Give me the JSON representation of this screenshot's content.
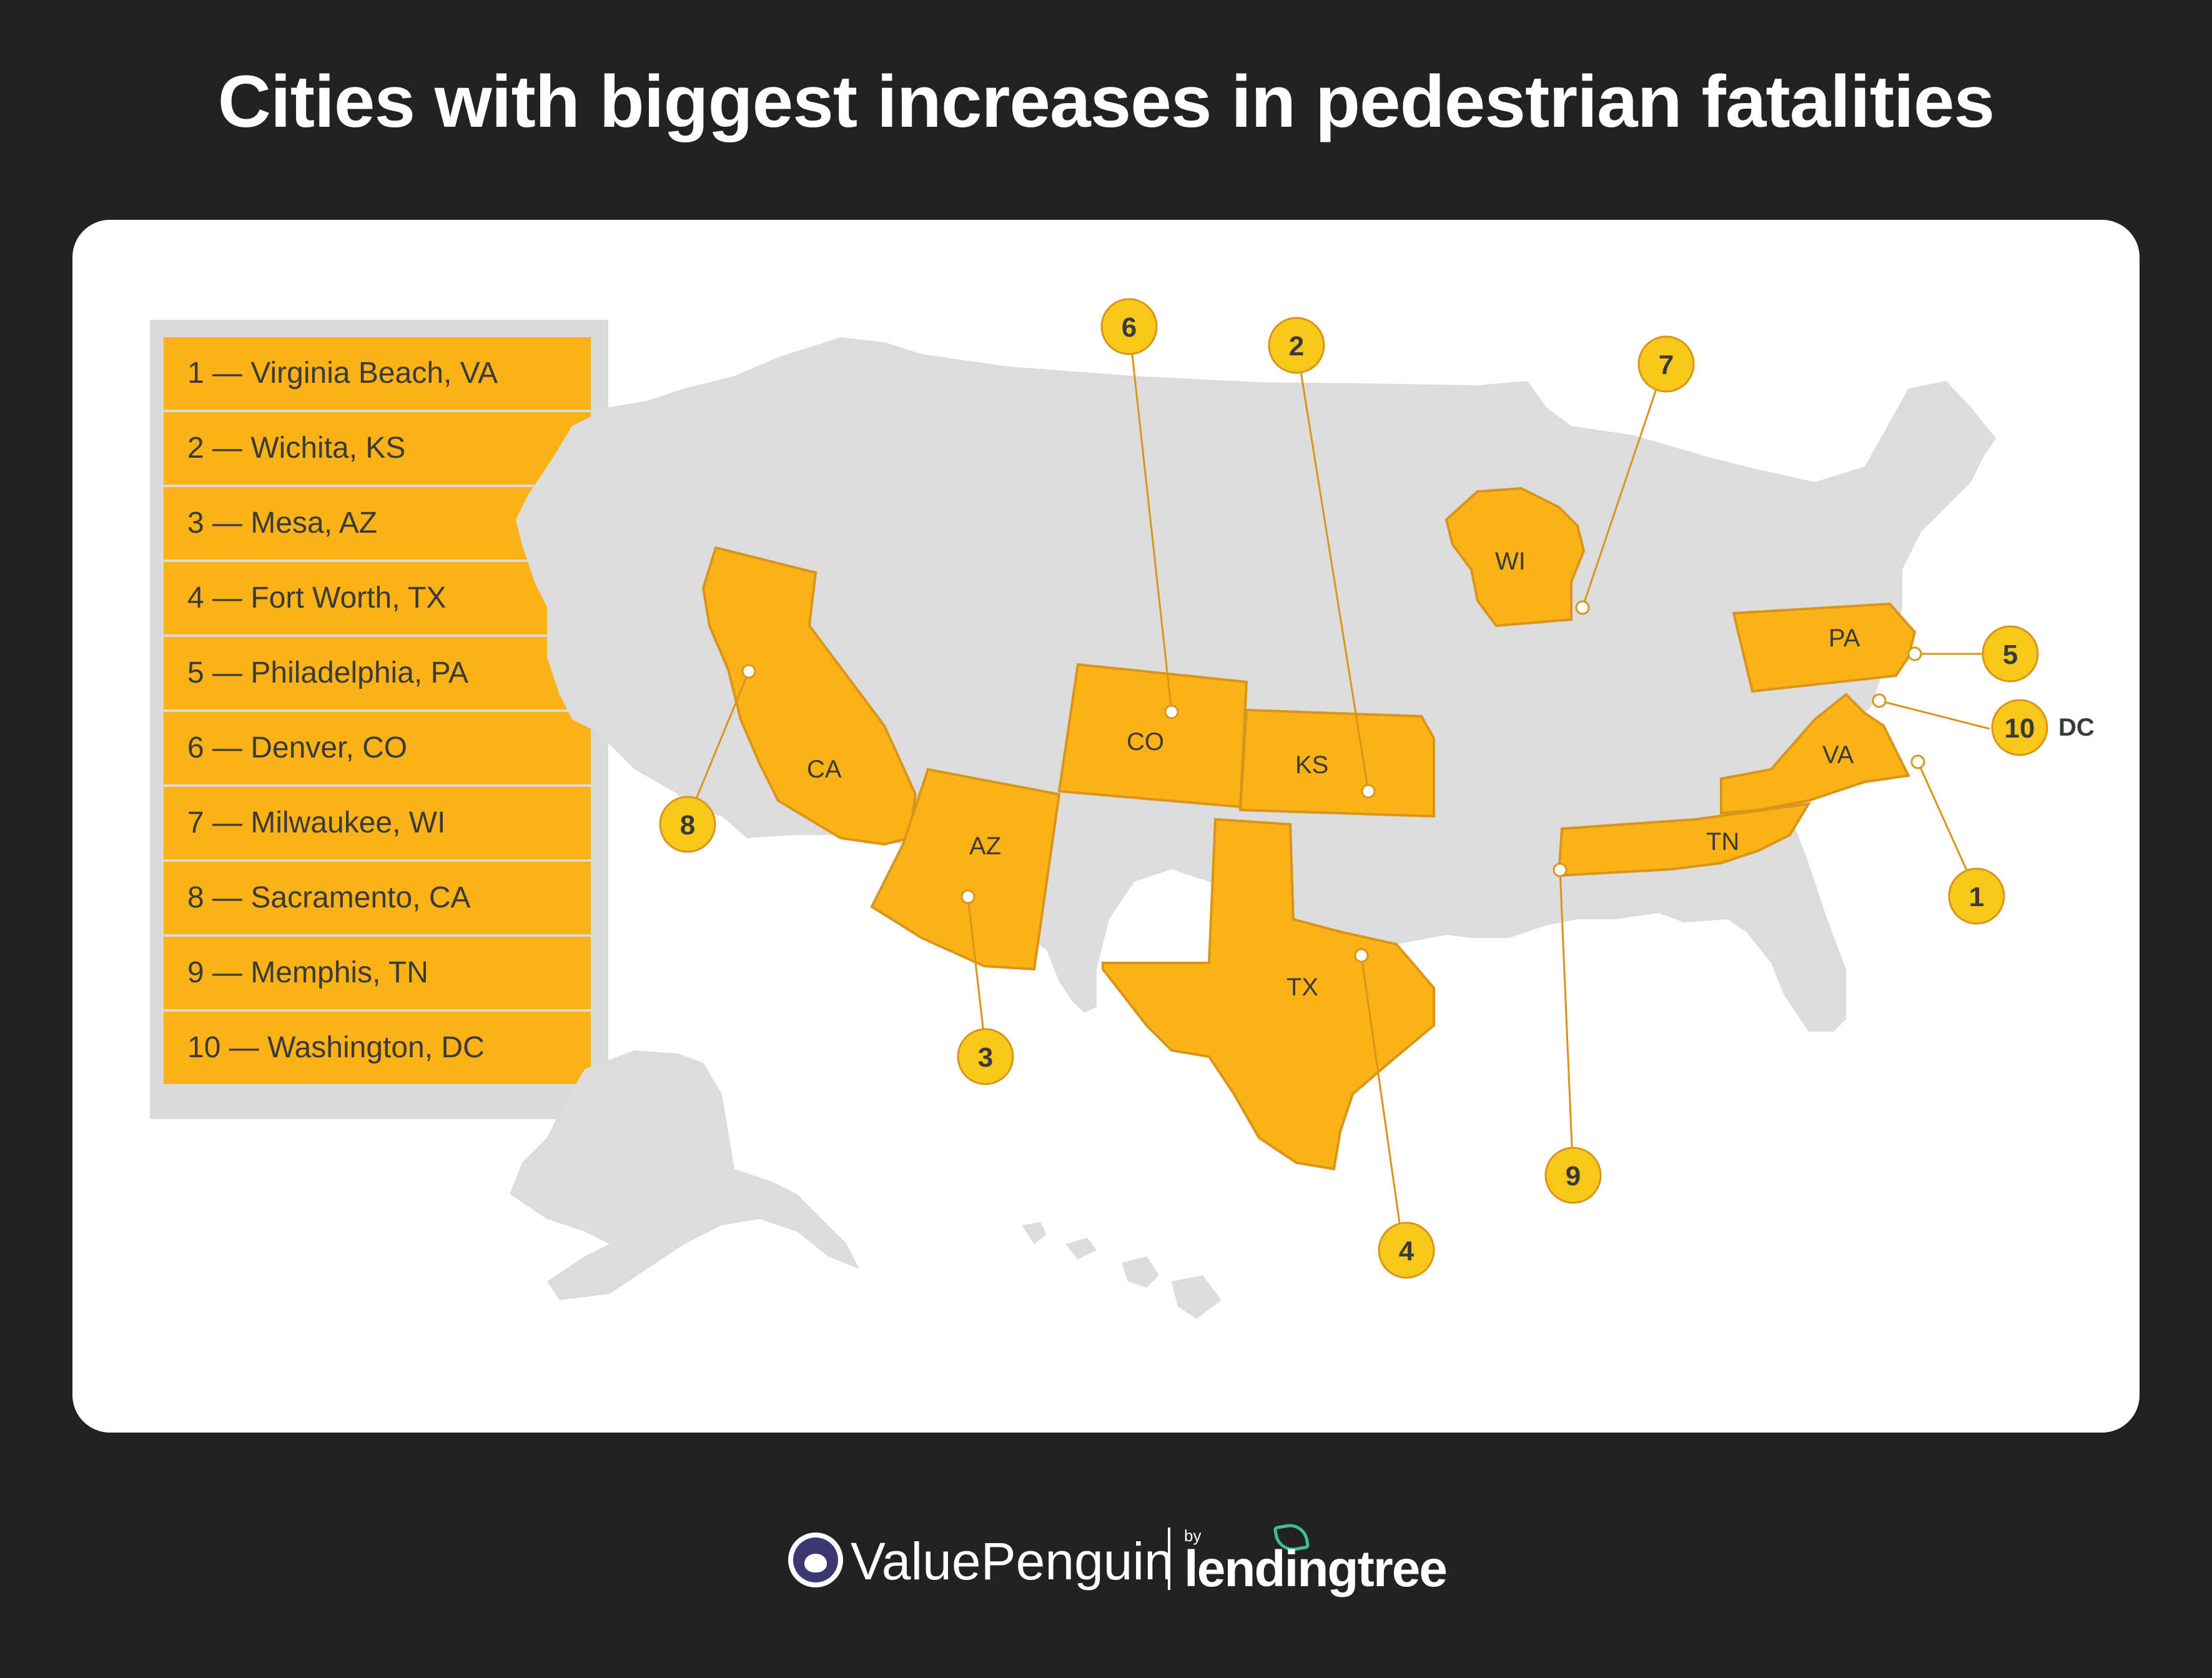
{
  "title": "Cities with biggest increases in pedestrian fatalities",
  "legend": [
    {
      "rank": 1,
      "label": "1 — Virginia Beach, VA"
    },
    {
      "rank": 2,
      "label": "2 — Wichita, KS"
    },
    {
      "rank": 3,
      "label": "3 — Mesa, AZ"
    },
    {
      "rank": 4,
      "label": "4 — Fort Worth, TX"
    },
    {
      "rank": 5,
      "label": "5 — Philadelphia, PA"
    },
    {
      "rank": 6,
      "label": "6 — Denver, CO"
    },
    {
      "rank": 7,
      "label": "7 — Milwaukee, WI"
    },
    {
      "rank": 8,
      "label": "8 — Sacramento, CA"
    },
    {
      "rank": 9,
      "label": "9 — Memphis, TN"
    },
    {
      "rank": 10,
      "label": "10 — Washington, DC"
    }
  ],
  "map": {
    "highlighted_states": [
      "CA",
      "AZ",
      "CO",
      "KS",
      "TX",
      "WI",
      "PA",
      "TN",
      "VA"
    ],
    "badges": [
      "1",
      "2",
      "3",
      "4",
      "5",
      "6",
      "7",
      "8",
      "9",
      "10"
    ],
    "dc_label": "DC",
    "colors": {
      "highlight": "#fbb217",
      "base": "#dcdcdc",
      "badge": "#f7c81a",
      "outline": "#d9951a"
    }
  },
  "footer": {
    "brand": "ValuePenguin",
    "by": "by",
    "partner": "lendingtree",
    "icons": [
      "penguin-icon",
      "leaf-icon"
    ]
  }
}
